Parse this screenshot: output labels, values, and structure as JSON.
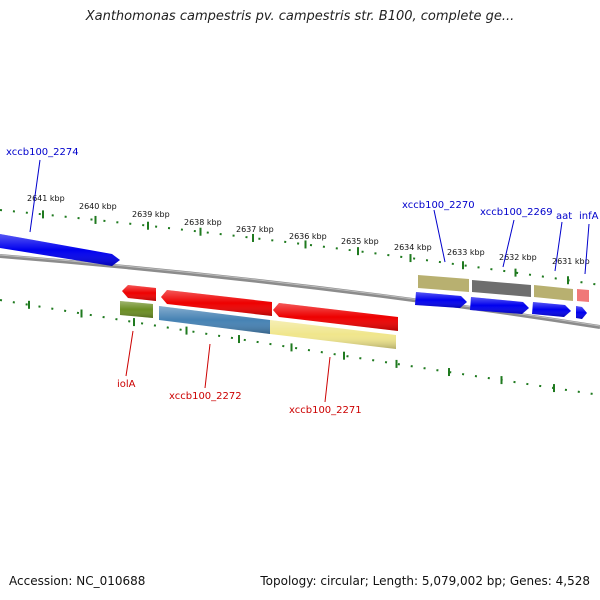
{
  "title": "Xanthomonas campestris pv. campestris str. B100, complete ge...",
  "colors": {
    "backbone": "#8c8c8c",
    "tick": "#1f7a1f",
    "forward_label": "#0000cc",
    "reverse_label": "#cc0000"
  },
  "kbp_labels": [
    "2641 kbp",
    "2640 kbp",
    "2639 kbp",
    "2638 kbp",
    "2637 kbp",
    "2636 kbp",
    "2635 kbp",
    "2634 kbp",
    "2633 kbp",
    "2632 kbp",
    "2631 kbp"
  ],
  "forward_gene_labels": [
    "xccb100_2274",
    "xccb100_2270",
    "xccb100_2269",
    "aat",
    "infA"
  ],
  "reverse_gene_labels": [
    "iolA",
    "xccb100_2272",
    "xccb100_2271"
  ],
  "features": [
    {
      "name": "gene-2274-cds",
      "color": "#0000ee"
    },
    {
      "name": "gene-2270-bar",
      "color": "#b8b070"
    },
    {
      "name": "gene-2269-bar",
      "color": "#6e6e6e"
    },
    {
      "name": "gene-aat-bar",
      "color": "#b8b070"
    },
    {
      "name": "gene-infA-bar",
      "color": "#f07878"
    },
    {
      "name": "gene-2270-cds",
      "color": "#0000ee"
    },
    {
      "name": "gene-2269-cds",
      "color": "#0000ee"
    },
    {
      "name": "gene-aat-cds",
      "color": "#0000ee"
    },
    {
      "name": "gene-infA-cds",
      "color": "#0000ee"
    },
    {
      "name": "gene-iolA-cds",
      "color": "#ee0000"
    },
    {
      "name": "gene-2272-cds",
      "color": "#ee0000"
    },
    {
      "name": "gene-2271-cds",
      "color": "#ee0000"
    },
    {
      "name": "gene-iolA-bar",
      "color": "#6b8e23"
    },
    {
      "name": "gene-2272-bar",
      "color": "#4682b4"
    },
    {
      "name": "gene-2271-bar",
      "color": "#f0e68c"
    }
  ],
  "footer": {
    "accession": "Accession: NC_010688",
    "summary": "Topology: circular; Length: 5,079,002 bp; Genes: 4,528"
  }
}
